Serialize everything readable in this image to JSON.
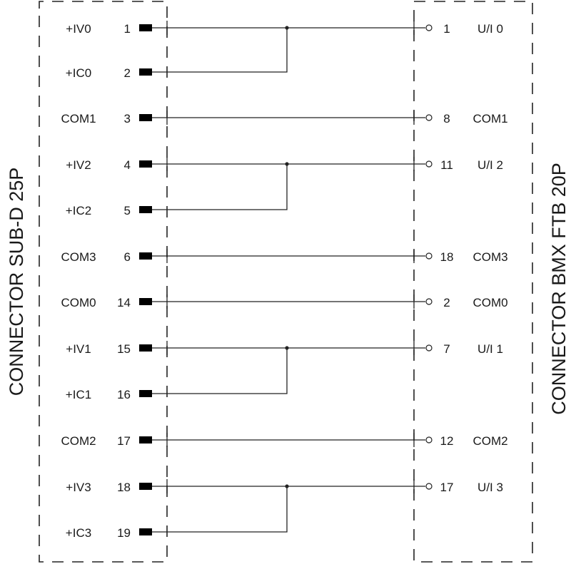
{
  "left_connector": {
    "title": "CONNECTOR SUB-D 25P",
    "pins": [
      {
        "signal": "+IV0",
        "pin": "1"
      },
      {
        "signal": "+IC0",
        "pin": "2"
      },
      {
        "signal": "COM1",
        "pin": "3"
      },
      {
        "signal": "+IV2",
        "pin": "4"
      },
      {
        "signal": "+IC2",
        "pin": "5"
      },
      {
        "signal": "COM3",
        "pin": "6"
      },
      {
        "signal": "COM0",
        "pin": "14"
      },
      {
        "signal": "+IV1",
        "pin": "15"
      },
      {
        "signal": "+IC1",
        "pin": "16"
      },
      {
        "signal": "COM2",
        "pin": "17"
      },
      {
        "signal": "+IV3",
        "pin": "18"
      },
      {
        "signal": "+IC3",
        "pin": "19"
      }
    ]
  },
  "right_connector": {
    "title": "CONNECTOR BMX FTB 20P",
    "terminals": [
      {
        "pin": "1",
        "signal": "U/I 0",
        "joined_from": [
          "1",
          "2"
        ]
      },
      {
        "pin": "8",
        "signal": "COM1",
        "joined_from": [
          "3"
        ]
      },
      {
        "pin": "11",
        "signal": "U/I 2",
        "joined_from": [
          "4",
          "5"
        ]
      },
      {
        "pin": "18",
        "signal": "COM3",
        "joined_from": [
          "6"
        ]
      },
      {
        "pin": "2",
        "signal": "COM0",
        "joined_from": [
          "14"
        ]
      },
      {
        "pin": "7",
        "signal": "U/I 1",
        "joined_from": [
          "15",
          "16"
        ]
      },
      {
        "pin": "12",
        "signal": "COM2",
        "joined_from": [
          "17"
        ]
      },
      {
        "pin": "17",
        "signal": "U/I 3",
        "joined_from": [
          "18",
          "19"
        ]
      }
    ]
  }
}
